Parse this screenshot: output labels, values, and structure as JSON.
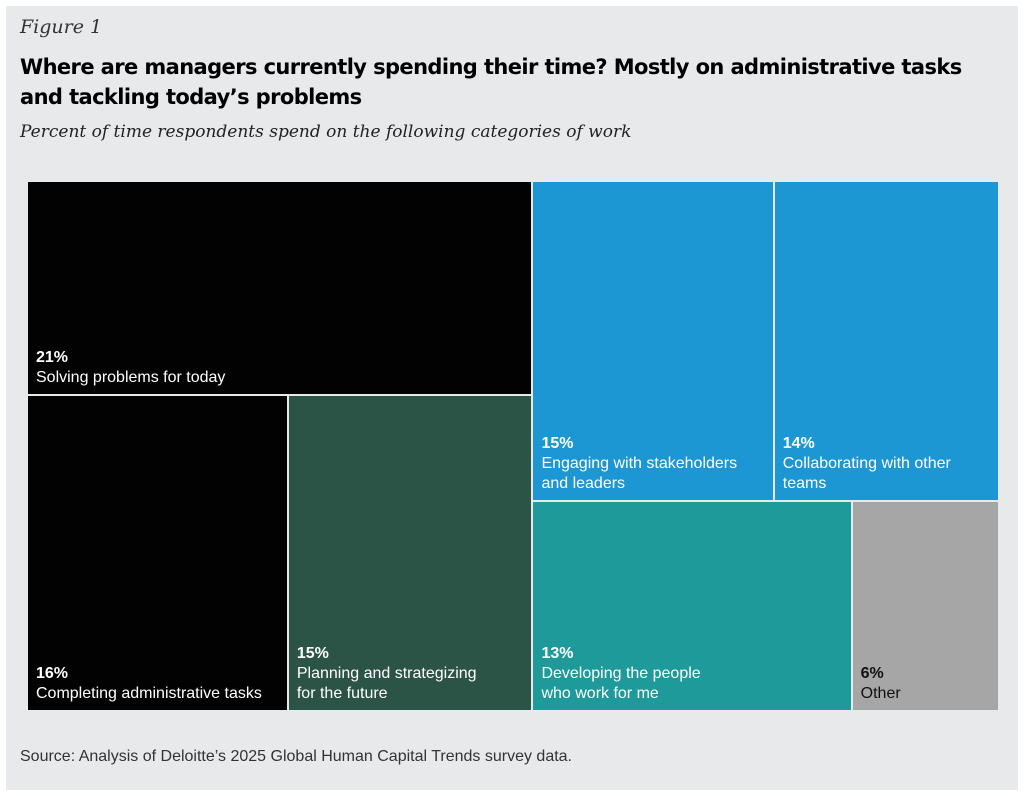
{
  "figure_label": "Figure 1",
  "title": "Where are managers currently spending their time? Mostly on administrative tasks and tackling today’s problems",
  "subtitle": "Percent of time respondents spend on the following categories of work",
  "source": "Source: Analysis of Deloitte’s 2025 Global Human Capital Trends survey data.",
  "chart_data": {
    "type": "treemap",
    "title": "Where are managers currently spending their time? Mostly on administrative tasks and tackling today’s problems",
    "subtitle": "Percent of time respondents spend on the following categories of work",
    "units": "percent",
    "items": [
      {
        "label": "Solving problems for today",
        "value": 21,
        "value_label": "21%",
        "color": "#020202"
      },
      {
        "label": "Completing administrative tasks",
        "value": 16,
        "value_label": "16%",
        "color": "#020202"
      },
      {
        "label": "Planning and strategizing\nfor the future",
        "value": 15,
        "value_label": "15%",
        "color": "#2b5447"
      },
      {
        "label": "Engaging with stakeholders\nand leaders",
        "value": 15,
        "value_label": "15%",
        "color": "#1d97d4"
      },
      {
        "label": "Collaborating with other teams",
        "value": 14,
        "value_label": "14%",
        "color": "#1d97d4"
      },
      {
        "label": "Developing the people\nwho work for me",
        "value": 13,
        "value_label": "13%",
        "color": "#1e9a9a"
      },
      {
        "label": "Other",
        "value": 6,
        "value_label": "6%",
        "color": "#a6a6a6"
      }
    ]
  }
}
